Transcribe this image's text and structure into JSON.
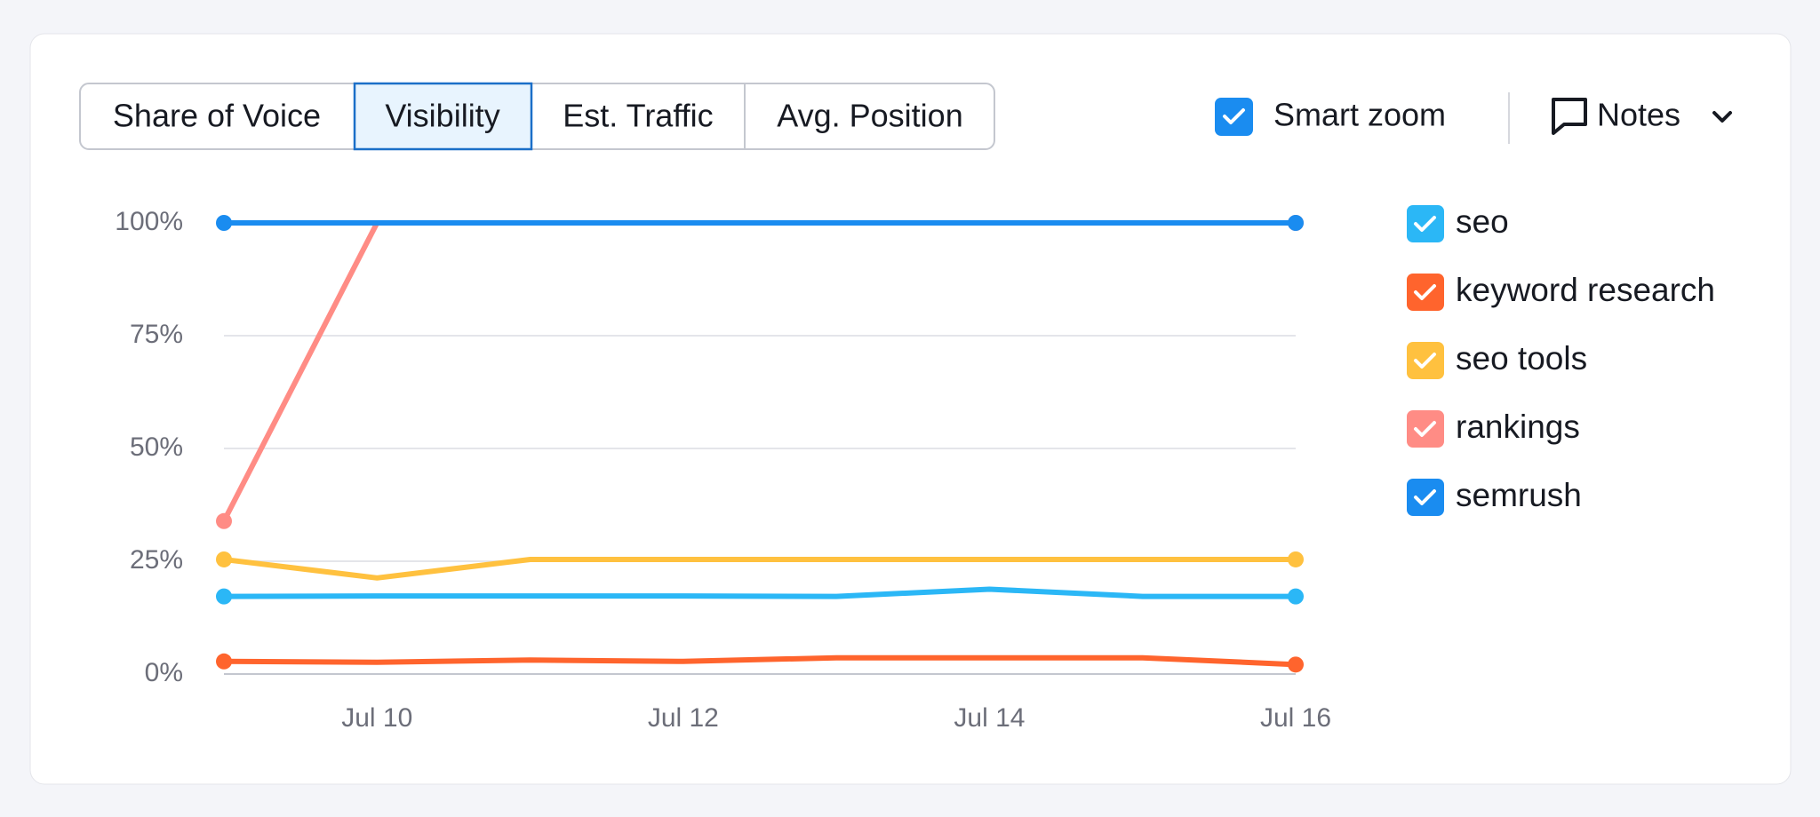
{
  "tabs": [
    "Share of Voice",
    "Visibility",
    "Est. Traffic",
    "Avg. Position"
  ],
  "smart_zoom": "Smart zoom",
  "notes": "Notes",
  "chart_data": {
    "type": "line",
    "categories": [
      null,
      "Jul 10",
      null,
      "Jul 12",
      null,
      "Jul 14",
      null,
      "Jul 16"
    ],
    "series": [
      {
        "name": "seo",
        "color": "#2bb7f6",
        "values": [
          17.2,
          17.3,
          17.3,
          17.3,
          17.2,
          18.8,
          17.2,
          17.2
        ]
      },
      {
        "name": "keyword research",
        "color": "#ff642d",
        "values": [
          2.8,
          2.6,
          3.1,
          2.8,
          3.6,
          3.6,
          3.6,
          2.1
        ]
      },
      {
        "name": "seo tools",
        "color": "#ffc13f",
        "values": [
          25.4,
          21.3,
          25.4,
          25.4,
          25.4,
          25.4,
          25.4,
          25.4
        ]
      },
      {
        "name": "rankings",
        "color": "#ff8c85",
        "values": [
          33.9,
          100,
          100,
          100,
          100,
          100,
          100,
          100
        ]
      },
      {
        "name": "semrush",
        "color": "#1a8cf0",
        "values": [
          100,
          100,
          100,
          100,
          100,
          100,
          100,
          100
        ]
      }
    ],
    "ylim": [
      0,
      100
    ],
    "yticks": [
      {
        "value": 0,
        "label": "0%"
      },
      {
        "value": 25,
        "label": "25%"
      },
      {
        "value": 50,
        "label": "50%"
      },
      {
        "value": 75,
        "label": "75%"
      },
      {
        "value": 100,
        "label": "100%"
      }
    ],
    "grid": true
  }
}
